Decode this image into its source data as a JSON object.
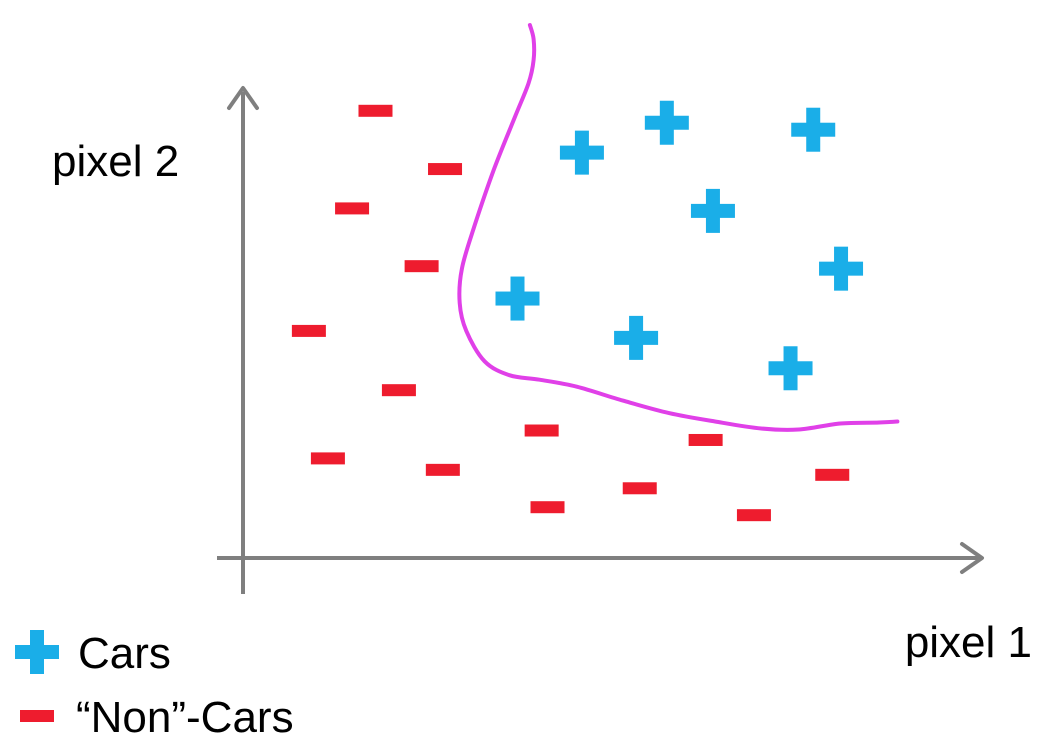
{
  "chart_data": {
    "type": "scatter",
    "title": "",
    "xlabel": "pixel 1",
    "ylabel": "pixel 2",
    "xlim": [
      0,
      100
    ],
    "ylim": [
      0,
      100
    ],
    "grid": false,
    "legend_placement": "bottom-left",
    "colors": {
      "cars": "#1aaee8",
      "non_cars": "#ee1c2e",
      "boundary": "#e040e8",
      "axis": "#7f7f7f"
    },
    "series": [
      {
        "name": "Cars",
        "marker": "plus",
        "points": [
          {
            "x": 57.9,
            "y": 87.4
          },
          {
            "x": 46.3,
            "y": 81.4
          },
          {
            "x": 77.9,
            "y": 86.0
          },
          {
            "x": 64.2,
            "y": 69.7
          },
          {
            "x": 81.7,
            "y": 58.1
          },
          {
            "x": 37.5,
            "y": 52.1
          },
          {
            "x": 53.7,
            "y": 44.2
          },
          {
            "x": 74.8,
            "y": 38.1
          }
        ]
      },
      {
        "name": "“Non”-Cars",
        "marker": "minus",
        "points": [
          {
            "x": 18.1,
            "y": 89.8
          },
          {
            "x": 27.6,
            "y": 78.1
          },
          {
            "x": 14.9,
            "y": 70.2
          },
          {
            "x": 24.4,
            "y": 58.6
          },
          {
            "x": 9.0,
            "y": 45.6
          },
          {
            "x": 21.3,
            "y": 33.7
          },
          {
            "x": 11.6,
            "y": 20.0
          },
          {
            "x": 27.3,
            "y": 17.7
          },
          {
            "x": 40.8,
            "y": 25.6
          },
          {
            "x": 41.6,
            "y": 10.2
          },
          {
            "x": 54.2,
            "y": 14.0
          },
          {
            "x": 63.2,
            "y": 23.7
          },
          {
            "x": 69.8,
            "y": 8.6
          },
          {
            "x": 80.5,
            "y": 16.7
          }
        ]
      }
    ],
    "boundary": {
      "name": "decision boundary",
      "points": [
        {
          "x": 39.2,
          "y": 107.0
        },
        {
          "x": 39.7,
          "y": 104.2
        },
        {
          "x": 39.7,
          "y": 100.0
        },
        {
          "x": 39.0,
          "y": 95.3
        },
        {
          "x": 37.1,
          "y": 88.4
        },
        {
          "x": 34.2,
          "y": 77.7
        },
        {
          "x": 31.7,
          "y": 67.0
        },
        {
          "x": 29.9,
          "y": 58.1
        },
        {
          "x": 29.6,
          "y": 51.2
        },
        {
          "x": 30.5,
          "y": 45.6
        },
        {
          "x": 33.0,
          "y": 39.5
        },
        {
          "x": 36.4,
          "y": 36.7
        },
        {
          "x": 40.5,
          "y": 35.8
        },
        {
          "x": 45.6,
          "y": 34.4
        },
        {
          "x": 51.9,
          "y": 31.6
        },
        {
          "x": 58.2,
          "y": 29.1
        },
        {
          "x": 64.5,
          "y": 27.4
        },
        {
          "x": 70.8,
          "y": 26.0
        },
        {
          "x": 75.9,
          "y": 25.8
        },
        {
          "x": 81.6,
          "y": 27.0
        },
        {
          "x": 86.9,
          "y": 27.2
        },
        {
          "x": 89.4,
          "y": 27.4
        }
      ]
    }
  }
}
